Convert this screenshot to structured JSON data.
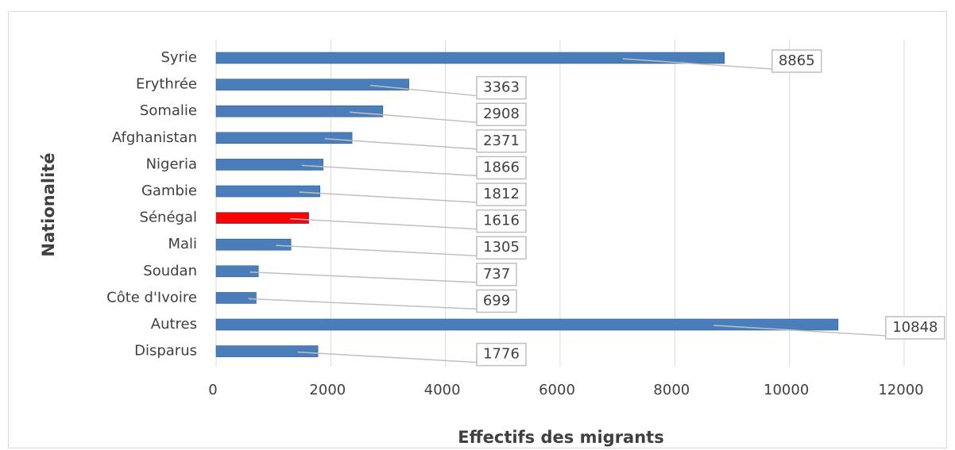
{
  "chart_data": {
    "type": "hbar",
    "categories": [
      "Syrie",
      "Erythrée",
      "Somalie",
      "Afghanistan",
      "Nigeria",
      "Gambie",
      "Sénégal",
      "Mali",
      "Soudan",
      "Côte d'Ivoire",
      "Autres",
      "Disparus"
    ],
    "values": [
      8865,
      3363,
      2908,
      2371,
      1866,
      1812,
      1616,
      1305,
      737,
      699,
      10848,
      1776
    ],
    "colors": [
      "#4a7ebb",
      "#4a7ebb",
      "#4a7ebb",
      "#4a7ebb",
      "#4a7ebb",
      "#4a7ebb",
      "#ff0000",
      "#4a7ebb",
      "#4a7ebb",
      "#4a7ebb",
      "#4a7ebb",
      "#4a7ebb"
    ],
    "xlabel": "Effectifs des migrants",
    "ylabel": "Nationalité",
    "xlim": [
      0,
      12000
    ],
    "xticks": [
      0,
      2000,
      4000,
      6000,
      8000,
      10000,
      12000
    ],
    "grid": true
  }
}
